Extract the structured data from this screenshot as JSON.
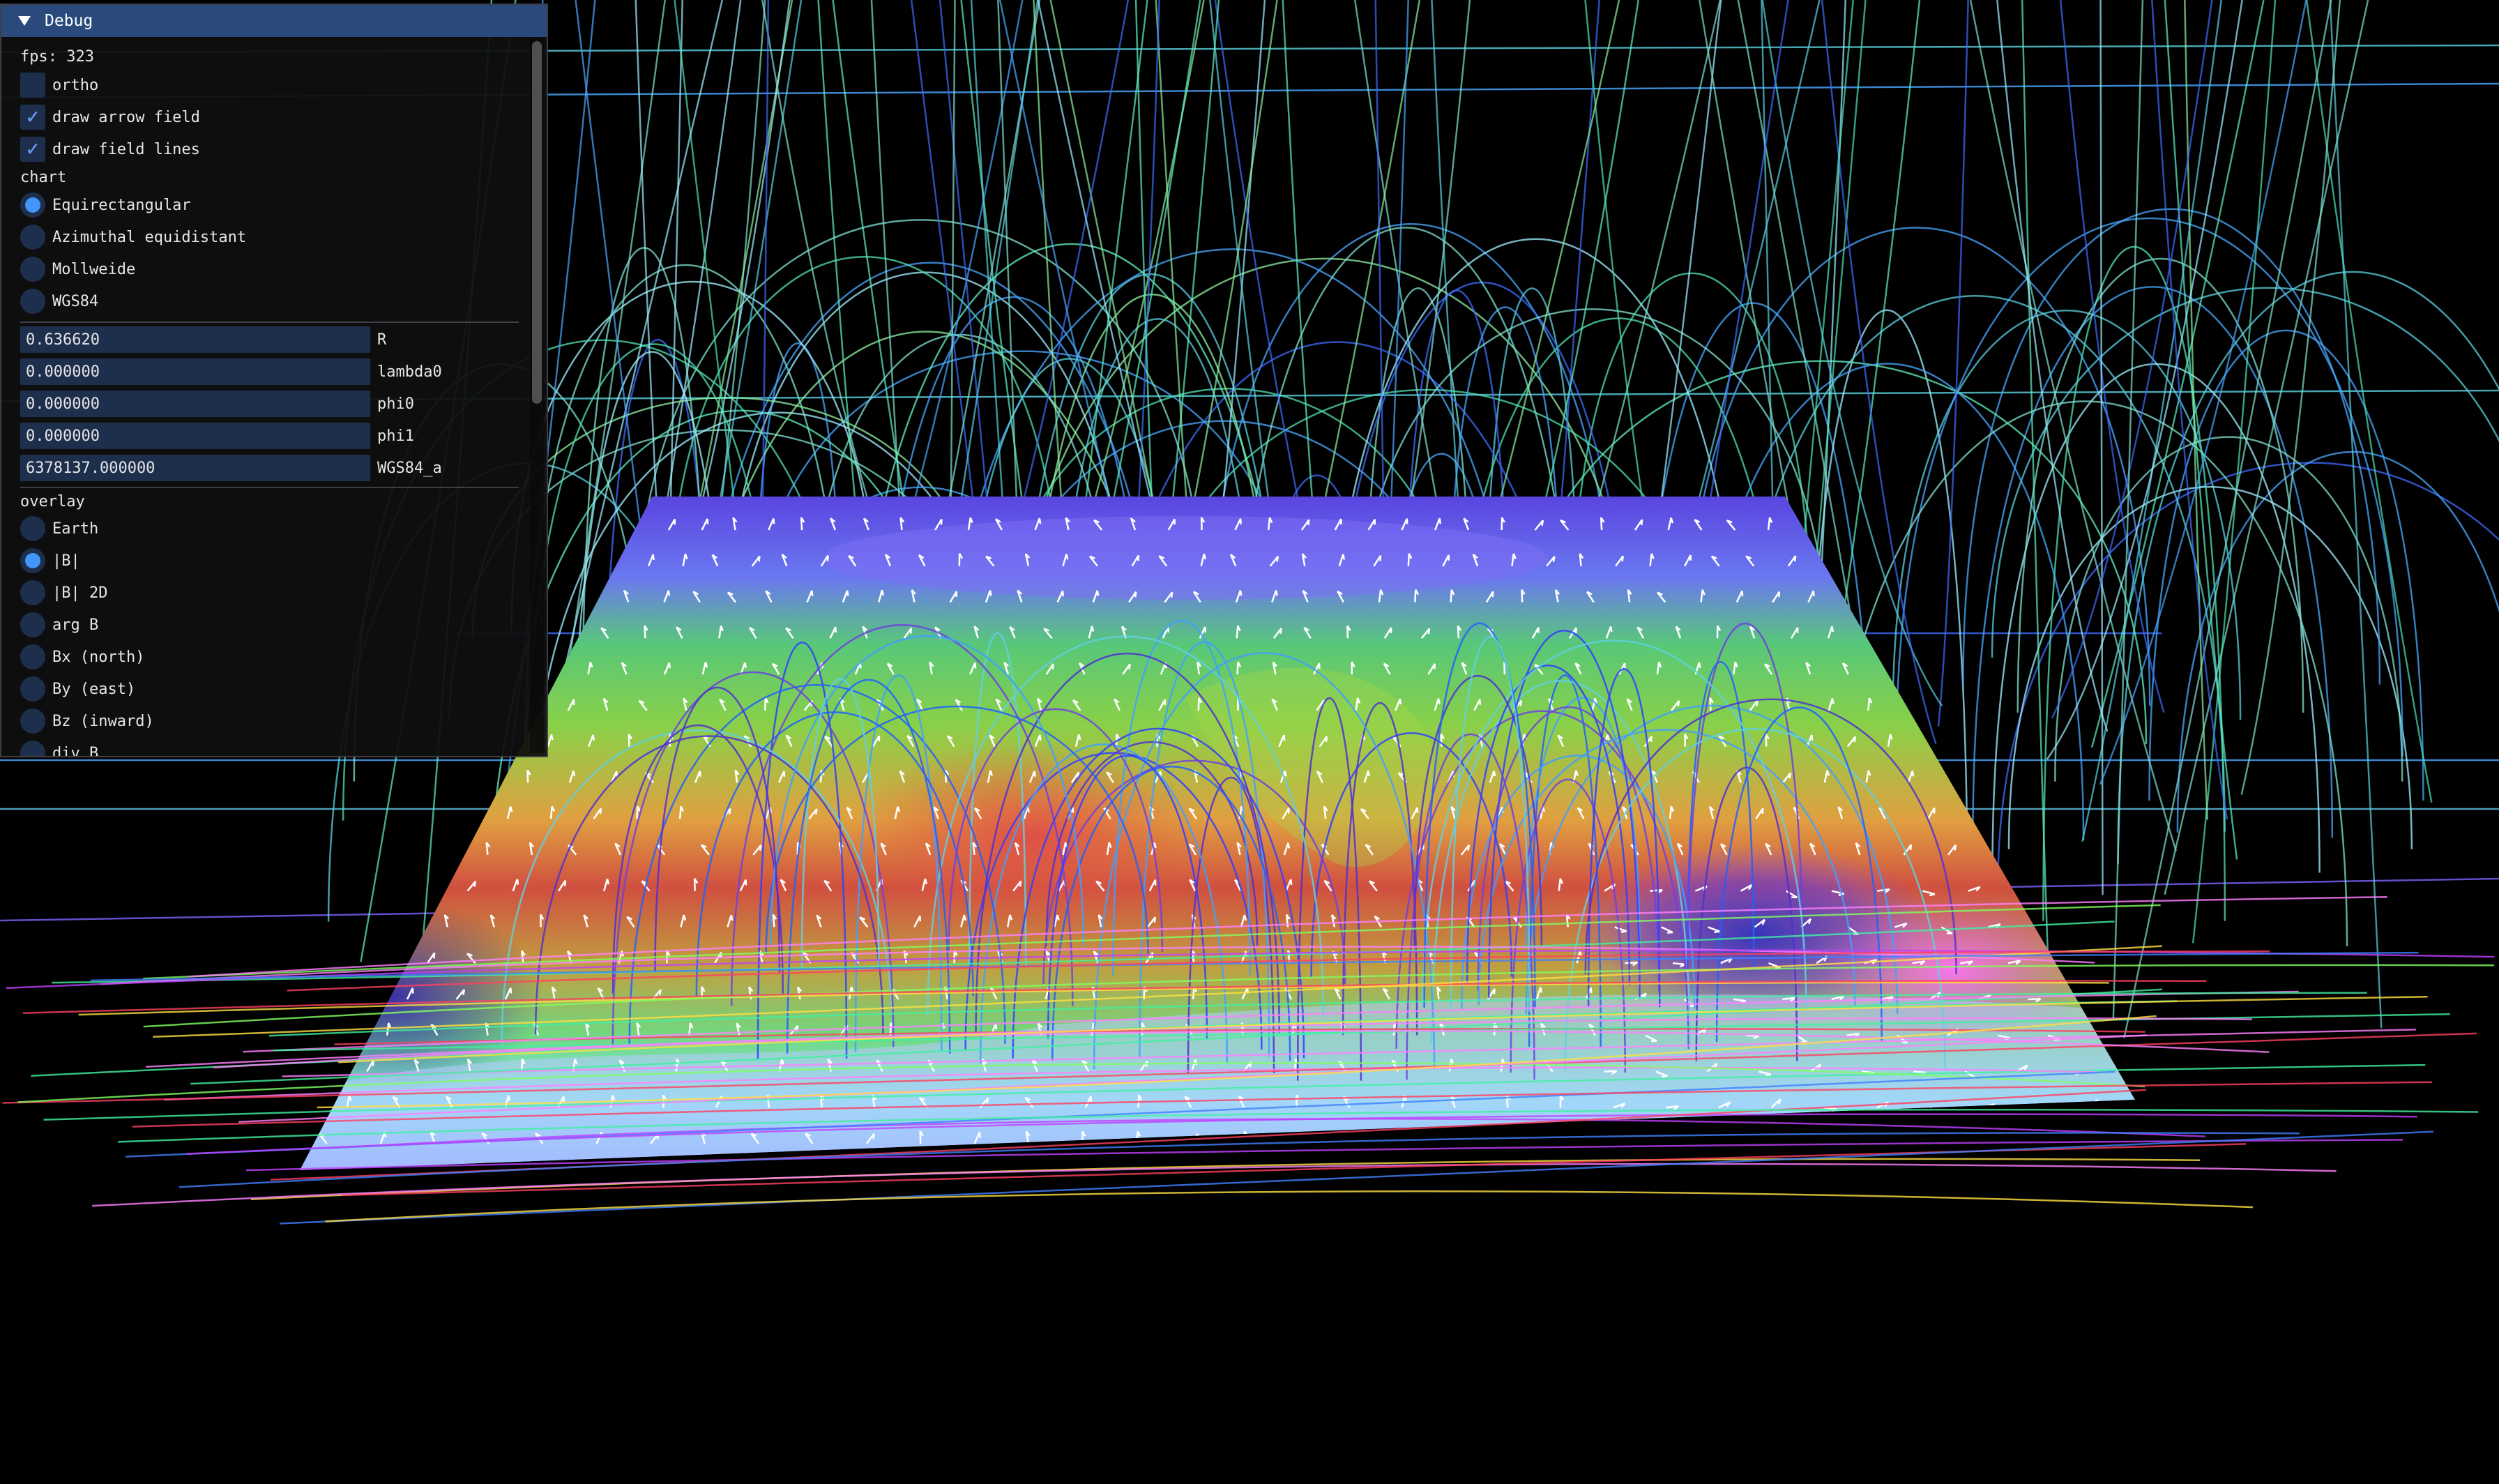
{
  "window": {
    "title": "Debug"
  },
  "stats": {
    "fps_label": "fps: 323"
  },
  "options": [
    {
      "label": "ortho",
      "checked": false
    },
    {
      "label": "draw arrow field",
      "checked": true
    },
    {
      "label": "draw field lines",
      "checked": true
    }
  ],
  "chart": {
    "heading": "chart",
    "items": [
      {
        "label": "Equirectangular",
        "selected": true
      },
      {
        "label": "Azimuthal equidistant",
        "selected": false
      },
      {
        "label": "Mollweide",
        "selected": false
      },
      {
        "label": "WGS84",
        "selected": false
      }
    ]
  },
  "params": [
    {
      "value": "0.636620",
      "label": "R"
    },
    {
      "value": "0.000000",
      "label": "lambda0"
    },
    {
      "value": "0.000000",
      "label": "phi0"
    },
    {
      "value": "0.000000",
      "label": "phi1"
    },
    {
      "value": "6378137.000000",
      "label": "WGS84_a"
    }
  ],
  "overlay": {
    "heading": "overlay",
    "items": [
      {
        "label": "Earth",
        "selected": false
      },
      {
        "label": "|B|",
        "selected": true
      },
      {
        "label": "|B| 2D",
        "selected": false
      },
      {
        "label": "arg B",
        "selected": false
      },
      {
        "label": "Bx (north)",
        "selected": false
      },
      {
        "label": "By (east)",
        "selected": false
      },
      {
        "label": "Bz (inward)",
        "selected": false
      },
      {
        "label": "div B",
        "selected": false
      }
    ]
  },
  "colors": {
    "background": "#000000",
    "title_bar": "#294a7a",
    "frame": "#1d2f4d",
    "check": "#6aa7ff",
    "radio_dot": "#4296fa"
  },
  "icons": {
    "collapse": "triangle-down-icon",
    "check": "check-icon",
    "radio": "radio-dot-icon"
  }
}
